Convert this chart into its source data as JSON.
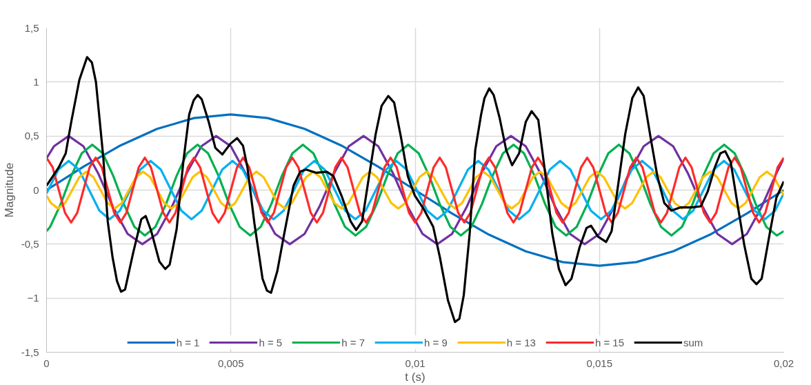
{
  "chart_data": {
    "type": "line",
    "xlabel": "t (s)",
    "ylabel": "Magnitude",
    "xlim": [
      0,
      0.02
    ],
    "ylim": [
      -1.5,
      1.5
    ],
    "xticks": [
      0,
      {
        "value": 0.005,
        "label": "0,005"
      },
      {
        "value": 0.01,
        "label": "0,01"
      },
      {
        "value": 0.015,
        "label": "0,015"
      },
      {
        "value": 0.02,
        "label": "0,02"
      }
    ],
    "yticks": [
      {
        "value": -1.5,
        "label": "-1,5"
      },
      -1,
      {
        "value": -0.5,
        "label": "-0,5"
      },
      0,
      {
        "value": 0.5,
        "label": "0,5"
      },
      1,
      {
        "value": 1.5,
        "label": "1,5"
      }
    ],
    "grid": true,
    "legend": "bottom",
    "marker": "none",
    "line_style": "solid",
    "series": [
      {
        "name": "h = 1",
        "color": "#0070c0",
        "x": [
          0,
          0.001,
          0.002,
          0.003,
          0.004,
          0.005,
          0.006,
          0.007,
          0.008,
          0.009,
          0.01,
          0.011,
          0.012,
          0.013,
          0.014,
          0.015,
          0.016,
          0.017,
          0.018,
          0.019,
          0.02
        ],
        "values": [
          0,
          0.216,
          0.412,
          0.566,
          0.666,
          0.7,
          0.666,
          0.566,
          0.412,
          0.216,
          0,
          -0.216,
          -0.412,
          -0.566,
          -0.666,
          -0.7,
          -0.666,
          -0.566,
          -0.412,
          -0.216,
          0
        ]
      },
      {
        "name": "h = 5",
        "color": "#7030a0",
        "x": [
          0,
          0.0002,
          0.0006,
          0.001,
          0.0014,
          0.0018,
          0.0022,
          0.0026,
          0.003,
          0.0034,
          0.0038,
          0.0042,
          0.0046,
          0.005,
          0.0054,
          0.0058,
          0.0062,
          0.0066,
          0.007,
          0.0074,
          0.0078,
          0.0082,
          0.0086,
          0.009,
          0.0094,
          0.0098,
          0.0102,
          0.0106,
          0.011,
          0.0114,
          0.0118,
          0.0122,
          0.0126,
          0.013,
          0.0134,
          0.0138,
          0.0142,
          0.0146,
          0.015,
          0.0154,
          0.0158,
          0.0162,
          0.0166,
          0.017,
          0.0174,
          0.0178,
          0.0182,
          0.0186,
          0.019,
          0.0194,
          0.0198,
          0.02
        ],
        "values": [
          0.294,
          0.405,
          0.5,
          0.405,
          0.155,
          -0.155,
          -0.405,
          -0.5,
          -0.405,
          -0.155,
          0.155,
          0.405,
          0.5,
          0.405,
          0.155,
          -0.155,
          -0.405,
          -0.5,
          -0.405,
          -0.155,
          0.155,
          0.405,
          0.5,
          0.405,
          0.155,
          -0.155,
          -0.405,
          -0.5,
          -0.405,
          -0.155,
          0.155,
          0.405,
          0.5,
          0.405,
          0.155,
          -0.155,
          -0.405,
          -0.5,
          -0.405,
          -0.155,
          0.155,
          0.405,
          0.5,
          0.405,
          0.155,
          -0.155,
          -0.405,
          -0.5,
          -0.405,
          -0.155,
          0.155,
          0.294
        ]
      },
      {
        "name": "h = 7",
        "color": "#00b050",
        "x": [
          0,
          9.7e-05,
          0.000383,
          0.000669,
          0.000954,
          0.00124,
          0.001526,
          0.001811,
          0.002097,
          0.002383,
          0.002669,
          0.002954,
          0.00324,
          0.003526,
          0.003811,
          0.004097,
          0.004383,
          0.004669,
          0.004954,
          0.00524,
          0.005526,
          0.005811,
          0.006097,
          0.006383,
          0.006669,
          0.006954,
          0.00724,
          0.007526,
          0.007811,
          0.008097,
          0.008383,
          0.008669,
          0.008954,
          0.00924,
          0.009526,
          0.009811,
          0.010097,
          0.010383,
          0.010669,
          0.010954,
          0.01124,
          0.011526,
          0.011811,
          0.012097,
          0.012383,
          0.012669,
          0.012954,
          0.01324,
          0.013526,
          0.013811,
          0.014097,
          0.014383,
          0.014669,
          0.014954,
          0.01524,
          0.015526,
          0.015811,
          0.016097,
          0.016383,
          0.016669,
          0.016954,
          0.01724,
          0.017526,
          0.017811,
          0.018097,
          0.018383,
          0.018669,
          0.018954,
          0.01924,
          0.019526,
          0.019811,
          0.02
        ],
        "values": [
          -0.38,
          -0.34,
          -0.13,
          0.13,
          0.34,
          0.42,
          0.34,
          0.13,
          -0.13,
          -0.34,
          -0.42,
          -0.34,
          -0.13,
          0.13,
          0.34,
          0.42,
          0.34,
          0.13,
          -0.13,
          -0.34,
          -0.42,
          -0.34,
          -0.13,
          0.13,
          0.34,
          0.42,
          0.34,
          0.13,
          -0.13,
          -0.34,
          -0.42,
          -0.34,
          -0.13,
          0.13,
          0.34,
          0.42,
          0.34,
          0.13,
          -0.13,
          -0.34,
          -0.42,
          -0.34,
          -0.13,
          0.13,
          0.34,
          0.42,
          0.34,
          0.13,
          -0.13,
          -0.34,
          -0.42,
          -0.34,
          -0.13,
          0.13,
          0.34,
          0.42,
          0.34,
          0.13,
          -0.13,
          -0.34,
          -0.42,
          -0.34,
          -0.13,
          0.13,
          0.34,
          0.42,
          0.34,
          0.13,
          -0.13,
          -0.34,
          -0.42,
          -0.38
        ]
      },
      {
        "name": "h = 9",
        "color": "#00b0f0",
        "x": [
          0,
          4.4e-05,
          0.000322,
          0.0006,
          0.000878,
          0.001156,
          0.001433,
          0.001711,
          0.001989,
          0.002267,
          0.002544,
          0.002822,
          0.0031,
          0.003378,
          0.003656,
          0.003933,
          0.004211,
          0.004489,
          0.004767,
          0.005044,
          0.005322,
          0.0056,
          0.005878,
          0.006156,
          0.006433,
          0.006711,
          0.006989,
          0.007267,
          0.007544,
          0.007822,
          0.0081,
          0.008378,
          0.008656,
          0.008933,
          0.009211,
          0.009489,
          0.009767,
          0.010044,
          0.010322,
          0.0106,
          0.010878,
          0.011156,
          0.011433,
          0.011711,
          0.011989,
          0.012267,
          0.012544,
          0.012822,
          0.0131,
          0.013378,
          0.013656,
          0.013933,
          0.014211,
          0.014489,
          0.014767,
          0.015044,
          0.015322,
          0.0156,
          0.015878,
          0.016156,
          0.016433,
          0.016711,
          0.016989,
          0.017267,
          0.017544,
          0.017822,
          0.0181,
          0.018378,
          0.018656,
          0.018933,
          0.019211,
          0.019489,
          0.019767,
          0.02
        ],
        "values": [
          -0.03,
          0,
          0.19,
          0.27,
          0.19,
          0,
          -0.19,
          -0.27,
          -0.19,
          0,
          0.19,
          0.27,
          0.19,
          0,
          -0.19,
          -0.27,
          -0.19,
          0,
          0.19,
          0.27,
          0.19,
          0,
          -0.19,
          -0.27,
          -0.19,
          0,
          0.19,
          0.27,
          0.19,
          0,
          -0.19,
          -0.27,
          -0.19,
          0,
          0.19,
          0.27,
          0.19,
          0,
          -0.19,
          -0.27,
          -0.19,
          0,
          0.19,
          0.27,
          0.19,
          0,
          -0.19,
          -0.27,
          -0.19,
          0,
          0.19,
          0.27,
          0.19,
          0,
          -0.19,
          -0.27,
          -0.19,
          0,
          0.19,
          0.27,
          0.19,
          0,
          -0.19,
          -0.27,
          -0.19,
          0,
          0.19,
          0.27,
          0.19,
          0,
          -0.19,
          -0.27,
          -0.19,
          -0.03
        ]
      },
      {
        "name": "h = 13",
        "color": "#ffc000",
        "x": [
          0,
          0.000118,
          0.000311,
          0.000503,
          0.000695,
          0.000888,
          0.00108,
          0.001272,
          0.001465,
          0.001657,
          0.001849,
          0.002042,
          0.002234,
          0.002426,
          0.002618,
          0.002811,
          0.003003,
          0.003195,
          0.003388,
          0.00358,
          0.003772,
          0.003965,
          0.004157,
          0.004349,
          0.004542,
          0.004734,
          0.004926,
          0.005118,
          0.005311,
          0.005503,
          0.005695,
          0.005888,
          0.00608,
          0.006272,
          0.006465,
          0.006657,
          0.006849,
          0.007042,
          0.007234,
          0.007426,
          0.007618,
          0.007811,
          0.008003,
          0.008195,
          0.008388,
          0.00858,
          0.008772,
          0.008965,
          0.009157,
          0.009349,
          0.009542,
          0.009734,
          0.009926,
          0.010118,
          0.010311,
          0.010503,
          0.010695,
          0.010888,
          0.01108,
          0.011272,
          0.011465,
          0.011657,
          0.011849,
          0.012042,
          0.012234,
          0.012426,
          0.012618,
          0.012811,
          0.013003,
          0.013195,
          0.013388,
          0.01358,
          0.013772,
          0.013965,
          0.014157,
          0.014349,
          0.014542,
          0.014734,
          0.014926,
          0.015118,
          0.015311,
          0.015503,
          0.015695,
          0.015888,
          0.01608,
          0.016272,
          0.016465,
          0.016657,
          0.016849,
          0.017042,
          0.017234,
          0.017426,
          0.017618,
          0.017811,
          0.018003,
          0.018195,
          0.018388,
          0.01858,
          0.018772,
          0.018965,
          0.019157,
          0.019349,
          0.019542,
          0.019734,
          0.019926,
          0.02
        ],
        "values": [
          -0.05,
          -0.12,
          -0.17,
          -0.12,
          0,
          0.12,
          0.17,
          0.12,
          0,
          -0.12,
          -0.17,
          -0.12,
          0,
          0.12,
          0.17,
          0.12,
          0,
          -0.12,
          -0.17,
          -0.12,
          0,
          0.12,
          0.17,
          0.12,
          0,
          -0.12,
          -0.17,
          -0.12,
          0,
          0.12,
          0.17,
          0.12,
          0,
          -0.12,
          -0.17,
          -0.12,
          0,
          0.12,
          0.17,
          0.12,
          0,
          -0.12,
          -0.17,
          -0.12,
          0,
          0.12,
          0.17,
          0.12,
          0,
          -0.12,
          -0.17,
          -0.12,
          0,
          0.12,
          0.17,
          0.12,
          0,
          -0.12,
          -0.17,
          -0.12,
          0,
          0.12,
          0.17,
          0.12,
          0,
          -0.12,
          -0.17,
          -0.12,
          0,
          0.12,
          0.17,
          0.12,
          0,
          -0.12,
          -0.17,
          -0.12,
          0,
          0.12,
          0.17,
          0.12,
          0,
          -0.12,
          -0.17,
          -0.12,
          0,
          0.12,
          0.17,
          0.12,
          0,
          -0.12,
          -0.17,
          -0.12,
          0,
          0.12,
          0.17,
          0.12,
          0,
          -0.12,
          -0.17,
          -0.12,
          0,
          0.12,
          0.17,
          0.12,
          0,
          -0.05
        ]
      },
      {
        "name": "h = 15",
        "color": "#ff2a2a",
        "x": [
          0,
          0.000167,
          0.000333,
          0.0005,
          0.000667,
          0.000833,
          0.001,
          0.001167,
          0.001333,
          0.0015,
          0.001667,
          0.001833,
          0.002,
          0.002167,
          0.002333,
          0.0025,
          0.002667,
          0.002833,
          0.003,
          0.003167,
          0.003333,
          0.0035,
          0.003667,
          0.003833,
          0.004,
          0.004167,
          0.004333,
          0.0045,
          0.004667,
          0.004833,
          0.005,
          0.005167,
          0.005333,
          0.0055,
          0.005667,
          0.005833,
          0.006,
          0.006167,
          0.006333,
          0.0065,
          0.006667,
          0.006833,
          0.007,
          0.007167,
          0.007333,
          0.0075,
          0.007667,
          0.007833,
          0.008,
          0.008167,
          0.008333,
          0.0085,
          0.008667,
          0.008833,
          0.009,
          0.009167,
          0.009333,
          0.0095,
          0.009667,
          0.009833,
          0.01,
          0.010167,
          0.010333,
          0.0105,
          0.010667,
          0.010833,
          0.011,
          0.011167,
          0.011333,
          0.0115,
          0.011667,
          0.011833,
          0.012,
          0.012167,
          0.012333,
          0.0125,
          0.012667,
          0.012833,
          0.013,
          0.013167,
          0.013333,
          0.0135,
          0.013667,
          0.013833,
          0.014,
          0.014167,
          0.014333,
          0.0145,
          0.014667,
          0.014833,
          0.015,
          0.015167,
          0.015333,
          0.0155,
          0.015667,
          0.015833,
          0.016,
          0.016167,
          0.016333,
          0.0165,
          0.016667,
          0.016833,
          0.017,
          0.017167,
          0.017333,
          0.0175,
          0.017667,
          0.017833,
          0.018,
          0.018167,
          0.018333,
          0.0185,
          0.018667,
          0.018833,
          0.019,
          0.019167,
          0.019333,
          0.0195,
          0.019667,
          0.019833,
          0.02
        ],
        "values": [
          0.3,
          0.21,
          0,
          -0.21,
          -0.3,
          -0.21,
          0,
          0.21,
          0.3,
          0.21,
          0,
          -0.21,
          -0.3,
          -0.21,
          0,
          0.21,
          0.3,
          0.21,
          0,
          -0.21,
          -0.3,
          -0.21,
          0,
          0.21,
          0.3,
          0.21,
          0,
          -0.21,
          -0.3,
          -0.21,
          0,
          0.21,
          0.3,
          0.21,
          0,
          -0.21,
          -0.3,
          -0.21,
          0,
          0.21,
          0.3,
          0.21,
          0,
          -0.21,
          -0.3,
          -0.21,
          0,
          0.21,
          0.3,
          0.21,
          0,
          -0.21,
          -0.3,
          -0.21,
          0,
          0.21,
          0.3,
          0.21,
          0,
          -0.21,
          -0.3,
          -0.21,
          0,
          0.21,
          0.3,
          0.21,
          0,
          -0.21,
          -0.3,
          -0.21,
          0,
          0.21,
          0.3,
          0.21,
          0,
          -0.21,
          -0.3,
          -0.21,
          0,
          0.21,
          0.3,
          0.21,
          0,
          -0.21,
          -0.3,
          -0.21,
          0,
          0.21,
          0.3,
          0.21,
          0,
          -0.21,
          -0.3,
          -0.21,
          0,
          0.21,
          0.3,
          0.21,
          0,
          -0.21,
          -0.3,
          -0.21,
          0,
          0.21,
          0.3,
          0.21,
          0,
          -0.21,
          -0.3,
          -0.21,
          0,
          0.21,
          0.3,
          0.21,
          0,
          -0.21,
          -0.3,
          -0.21,
          0,
          0.21,
          0.3
        ]
      },
      {
        "name": "sum",
        "color": "#000000",
        "x": [
          0,
          0.00033,
          0.00052,
          0.00067,
          0.00089,
          0.0011,
          0.00123,
          0.00134,
          0.00154,
          0.00166,
          0.00179,
          0.00191,
          0.00202,
          0.00213,
          0.00235,
          0.00257,
          0.00269,
          0.00284,
          0.00306,
          0.00322,
          0.00334,
          0.00353,
          0.00371,
          0.00387,
          0.00399,
          0.0041,
          0.00421,
          0.0044,
          0.00458,
          0.00477,
          0.00499,
          0.00517,
          0.00533,
          0.00545,
          0.00564,
          0.00586,
          0.00598,
          0.00609,
          0.00626,
          0.00645,
          0.0067,
          0.00688,
          0.00704,
          0.00732,
          0.0076,
          0.00778,
          0.008,
          0.00825,
          0.0084,
          0.00856,
          0.00875,
          0.00893,
          0.00909,
          0.00927,
          0.00943,
          0.00962,
          0.0098,
          0.00999,
          0.01024,
          0.01049,
          0.01067,
          0.01089,
          0.01108,
          0.0112,
          0.01132,
          0.01148,
          0.01163,
          0.01179,
          0.01188,
          0.01201,
          0.01213,
          0.01229,
          0.01247,
          0.01263,
          0.01282,
          0.013,
          0.01316,
          0.01334,
          0.01353,
          0.01372,
          0.0139,
          0.01408,
          0.01424,
          0.01446,
          0.01465,
          0.01477,
          0.01496,
          0.01518,
          0.01533,
          0.01552,
          0.0157,
          0.01589,
          0.01605,
          0.0162,
          0.01639,
          0.01657,
          0.01676,
          0.01695,
          0.0172,
          0.0175,
          0.01775,
          0.01794,
          0.01813,
          0.01828,
          0.01841,
          0.01856,
          0.01875,
          0.01893,
          0.01912,
          0.01926,
          0.0194,
          0.01962,
          0.0198,
          0.02
        ],
        "values": [
          0.04,
          0.21,
          0.34,
          0.63,
          1.02,
          1.23,
          1.18,
          1.0,
          0.3,
          -0.29,
          -0.62,
          -0.84,
          -0.94,
          -0.92,
          -0.58,
          -0.27,
          -0.24,
          -0.38,
          -0.66,
          -0.73,
          -0.69,
          -0.36,
          0.26,
          0.7,
          0.83,
          0.88,
          0.84,
          0.63,
          0.39,
          0.33,
          0.43,
          0.48,
          0.41,
          0.21,
          -0.31,
          -0.82,
          -0.93,
          -0.95,
          -0.75,
          -0.4,
          0.04,
          0.17,
          0.19,
          0.16,
          0.17,
          0.13,
          -0.05,
          -0.29,
          -0.37,
          -0.29,
          0.13,
          0.52,
          0.78,
          0.87,
          0.81,
          0.48,
          0.13,
          -0.05,
          -0.18,
          -0.34,
          -0.62,
          -1.02,
          -1.22,
          -1.19,
          -0.97,
          -0.4,
          0.37,
          0.7,
          0.85,
          0.94,
          0.88,
          0.67,
          0.37,
          0.23,
          0.34,
          0.63,
          0.73,
          0.65,
          0.15,
          -0.4,
          -0.73,
          -0.88,
          -0.82,
          -0.53,
          -0.35,
          -0.33,
          -0.43,
          -0.48,
          -0.38,
          0.08,
          0.52,
          0.85,
          0.95,
          0.87,
          0.48,
          0.13,
          -0.12,
          -0.19,
          -0.16,
          -0.16,
          -0.15,
          -0.01,
          0.21,
          0.34,
          0.36,
          0.26,
          -0.14,
          -0.51,
          -0.82,
          -0.87,
          -0.82,
          -0.4,
          -0.07,
          0.08
        ]
      }
    ]
  }
}
